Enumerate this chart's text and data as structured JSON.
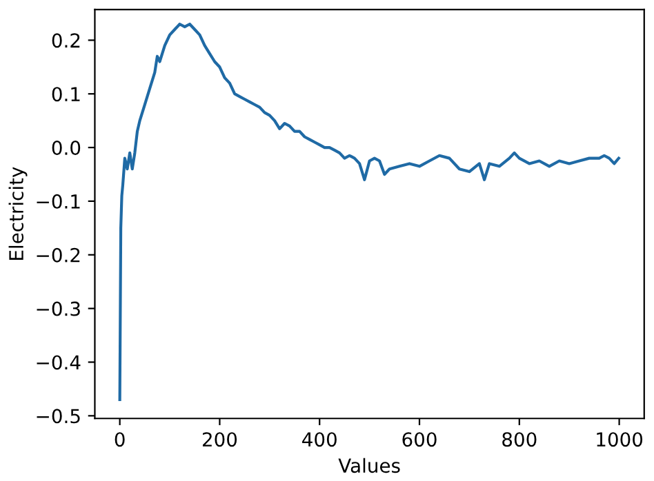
{
  "chart_data": {
    "type": "line",
    "xlabel": "Values",
    "ylabel": "Electricity",
    "xlim": [
      -50,
      1050
    ],
    "ylim": [
      -0.505,
      0.257
    ],
    "xticks": [
      0,
      200,
      400,
      600,
      800,
      1000
    ],
    "yticks": [
      {
        "value": -0.5,
        "label": "−0.5"
      },
      {
        "value": -0.4,
        "label": "−0.4"
      },
      {
        "value": -0.3,
        "label": "−0.3"
      },
      {
        "value": -0.2,
        "label": "−0.2"
      },
      {
        "value": -0.1,
        "label": "−0.1"
      },
      {
        "value": 0,
        "label": "0.0"
      },
      {
        "value": 0.1,
        "label": "0.1"
      },
      {
        "value": 0.2,
        "label": "0.2"
      }
    ],
    "grid": false,
    "legend": false,
    "series": [
      {
        "color": "#1f6aa5",
        "x": [
          0,
          2,
          4,
          6,
          10,
          15,
          20,
          25,
          30,
          35,
          40,
          50,
          60,
          70,
          75,
          80,
          90,
          100,
          110,
          120,
          130,
          140,
          150,
          160,
          170,
          180,
          190,
          200,
          210,
          220,
          230,
          240,
          250,
          260,
          270,
          280,
          290,
          300,
          310,
          320,
          330,
          340,
          350,
          360,
          370,
          380,
          390,
          400,
          410,
          420,
          430,
          440,
          450,
          460,
          470,
          480,
          490,
          500,
          510,
          520,
          530,
          540,
          560,
          580,
          600,
          620,
          640,
          660,
          680,
          700,
          720,
          730,
          740,
          760,
          780,
          790,
          800,
          820,
          840,
          860,
          880,
          900,
          920,
          940,
          960,
          970,
          980,
          990,
          999
        ],
        "values": [
          -0.47,
          -0.15,
          -0.09,
          -0.07,
          -0.02,
          -0.04,
          -0.01,
          -0.04,
          -0.01,
          0.03,
          0.05,
          0.08,
          0.11,
          0.14,
          0.17,
          0.16,
          0.19,
          0.21,
          0.22,
          0.23,
          0.225,
          0.23,
          0.22,
          0.21,
          0.19,
          0.175,
          0.16,
          0.15,
          0.13,
          0.12,
          0.1,
          0.095,
          0.09,
          0.085,
          0.08,
          0.075,
          0.065,
          0.06,
          0.05,
          0.035,
          0.045,
          0.04,
          0.03,
          0.03,
          0.02,
          0.015,
          0.01,
          0.005,
          0.0,
          0.0,
          -0.005,
          -0.01,
          -0.02,
          -0.015,
          -0.02,
          -0.03,
          -0.06,
          -0.025,
          -0.02,
          -0.025,
          -0.05,
          -0.04,
          -0.035,
          -0.03,
          -0.035,
          -0.025,
          -0.015,
          -0.02,
          -0.04,
          -0.045,
          -0.03,
          -0.06,
          -0.03,
          -0.035,
          -0.02,
          -0.01,
          -0.02,
          -0.03,
          -0.025,
          -0.035,
          -0.025,
          -0.03,
          -0.025,
          -0.02,
          -0.02,
          -0.015,
          -0.02,
          -0.03,
          -0.02
        ]
      }
    ]
  }
}
